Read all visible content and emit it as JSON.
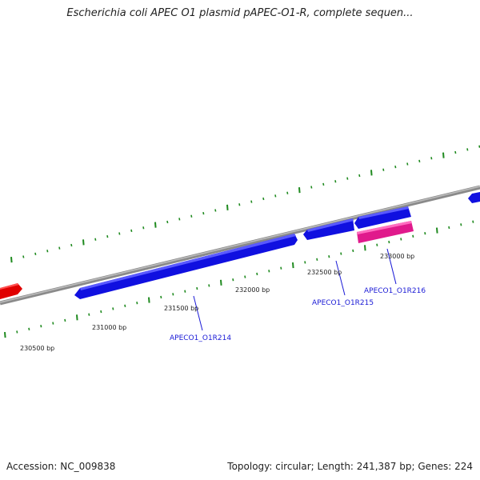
{
  "title": "Escherichia coli APEC O1 plasmid pAPEC-O1-R, complete sequen...",
  "footer": {
    "accession": "Accession: NC_009838",
    "summary": "Topology: circular; Length: 241,387 bp; Genes: 224"
  },
  "colors": {
    "background": "#ffffff",
    "backbone": "#8a8a8a",
    "tick": "#1f8a1f",
    "gene_forward": "#1010e0",
    "gene_reverse_highlight": "#e01a8c",
    "gene_other": "#e00000",
    "label_line": "#1a1ad6"
  },
  "tick_labels": [
    "230500 bp",
    "231000 bp",
    "231500 bp",
    "232000 bp",
    "232500 bp",
    "233000 bp"
  ],
  "genes": [
    {
      "label": "APECO1_O1R214",
      "color": "blue"
    },
    {
      "label": "APECO1_O1R215",
      "color": "blue"
    },
    {
      "label": "APECO1_O1R216",
      "color": "pink"
    }
  ]
}
